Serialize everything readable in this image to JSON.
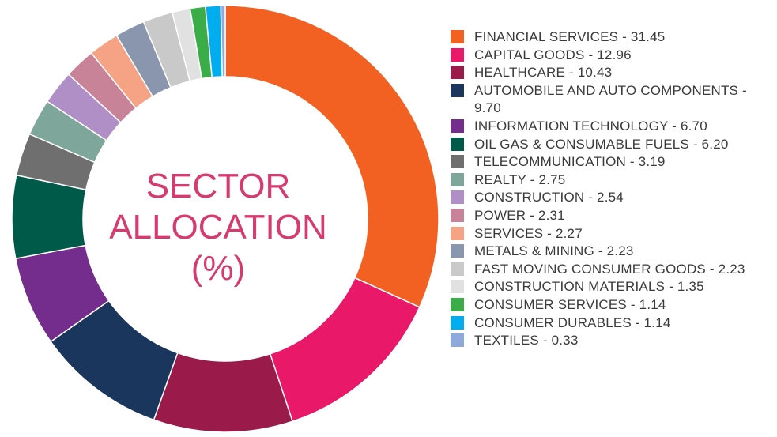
{
  "chart_data": {
    "type": "pie",
    "title_lines": [
      "SECTOR",
      "ALLOCATION",
      "(%)"
    ],
    "categories": [
      "FINANCIAL SERVICES",
      "CAPITAL GOODS",
      "HEALTHCARE",
      "AUTOMOBILE AND AUTO COMPONENTS",
      "INFORMATION TECHNOLOGY",
      "OIL GAS & CONSUMABLE FUELS",
      "TELECOMMUNICATION",
      "REALTY",
      "CONSTRUCTION",
      "POWER",
      "SERVICES",
      "METALS & MINING",
      "FAST MOVING CONSUMER GOODS",
      "CONSTRUCTION MATERIALS",
      "CONSUMER SERVICES",
      "CONSUMER DURABLES",
      "TEXTILES"
    ],
    "values": [
      31.45,
      12.96,
      10.43,
      9.7,
      6.7,
      6.2,
      3.19,
      2.75,
      2.54,
      2.31,
      2.27,
      2.23,
      2.23,
      1.35,
      1.14,
      1.14,
      0.33
    ],
    "colors": [
      "#f26122",
      "#ea1868",
      "#9a1a4a",
      "#1b365d",
      "#742d8c",
      "#005a4a",
      "#6f6f6f",
      "#7fa69b",
      "#b08fc7",
      "#c98399",
      "#f5a384",
      "#8a96ad",
      "#c9c9c9",
      "#e1e1e1",
      "#3aac48",
      "#00aeef",
      "#8ea9db"
    ],
    "legend_labels": [
      "FINANCIAL SERVICES - 31.45",
      "CAPITAL GOODS - 12.96",
      "HEALTHCARE - 10.43",
      "AUTOMOBILE AND AUTO COMPONENTS - 9.70",
      "INFORMATION TECHNOLOGY - 6.70",
      "OIL GAS & CONSUMABLE FUELS - 6.20",
      "TELECOMMUNICATION - 3.19",
      "REALTY - 2.75",
      "CONSTRUCTION - 2.54",
      "POWER - 2.31",
      "SERVICES - 2.27",
      "METALS & MINING - 2.23",
      "FAST MOVING CONSUMER GOODS - 2.23",
      "CONSTRUCTION MATERIALS - 1.35",
      "CONSUMER SERVICES - 1.14",
      "CONSUMER DURABLES - 1.14",
      "TEXTILES - 0.33"
    ],
    "legend_position": "right",
    "donut": true
  }
}
